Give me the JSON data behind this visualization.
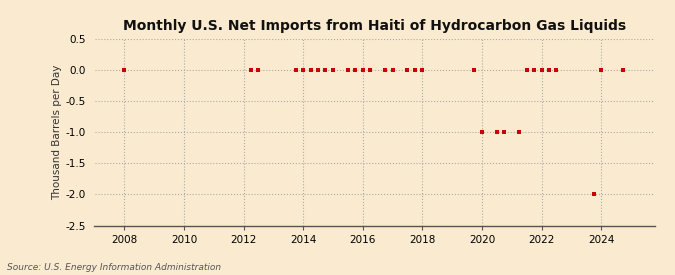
{
  "title": "Monthly U.S. Net Imports from Haiti of Hydrocarbon Gas Liquids",
  "ylabel": "Thousand Barrels per Day",
  "source": "Source: U.S. Energy Information Administration",
  "background_color": "#faebd0",
  "plot_bg_color": "#faebd0",
  "point_color": "#cc0000",
  "marker": "s",
  "markersize": 3.5,
  "ylim": [
    -2.5,
    0.5
  ],
  "yticks": [
    0.5,
    0.0,
    -0.5,
    -1.0,
    -1.5,
    -2.0,
    -2.5
  ],
  "ytick_labels": [
    "0.5",
    "0.0",
    "-0.5",
    "-1.0",
    "-1.5",
    "-2.0",
    "-2.5"
  ],
  "xlim_start": 2007.0,
  "xlim_end": 2025.8,
  "xticks": [
    2008,
    2010,
    2012,
    2014,
    2016,
    2018,
    2020,
    2022,
    2024
  ],
  "data_points": [
    [
      2008.0,
      0.0
    ],
    [
      2012.25,
      0.0
    ],
    [
      2012.5,
      0.0
    ],
    [
      2013.75,
      0.0
    ],
    [
      2014.0,
      0.0
    ],
    [
      2014.25,
      0.0
    ],
    [
      2014.5,
      0.0
    ],
    [
      2014.75,
      0.0
    ],
    [
      2015.0,
      0.0
    ],
    [
      2015.5,
      0.0
    ],
    [
      2015.75,
      0.0
    ],
    [
      2016.0,
      0.0
    ],
    [
      2016.25,
      0.0
    ],
    [
      2016.75,
      0.0
    ],
    [
      2017.0,
      0.0
    ],
    [
      2017.5,
      0.0
    ],
    [
      2017.75,
      0.0
    ],
    [
      2018.0,
      0.0
    ],
    [
      2019.75,
      0.0
    ],
    [
      2020.0,
      -1.0
    ],
    [
      2020.5,
      -1.0
    ],
    [
      2020.75,
      -1.0
    ],
    [
      2021.25,
      -1.0
    ],
    [
      2021.5,
      0.0
    ],
    [
      2021.75,
      0.0
    ],
    [
      2022.0,
      0.0
    ],
    [
      2022.25,
      0.0
    ],
    [
      2022.5,
      0.0
    ],
    [
      2023.75,
      -2.0
    ],
    [
      2024.0,
      0.0
    ],
    [
      2024.75,
      0.0
    ]
  ]
}
